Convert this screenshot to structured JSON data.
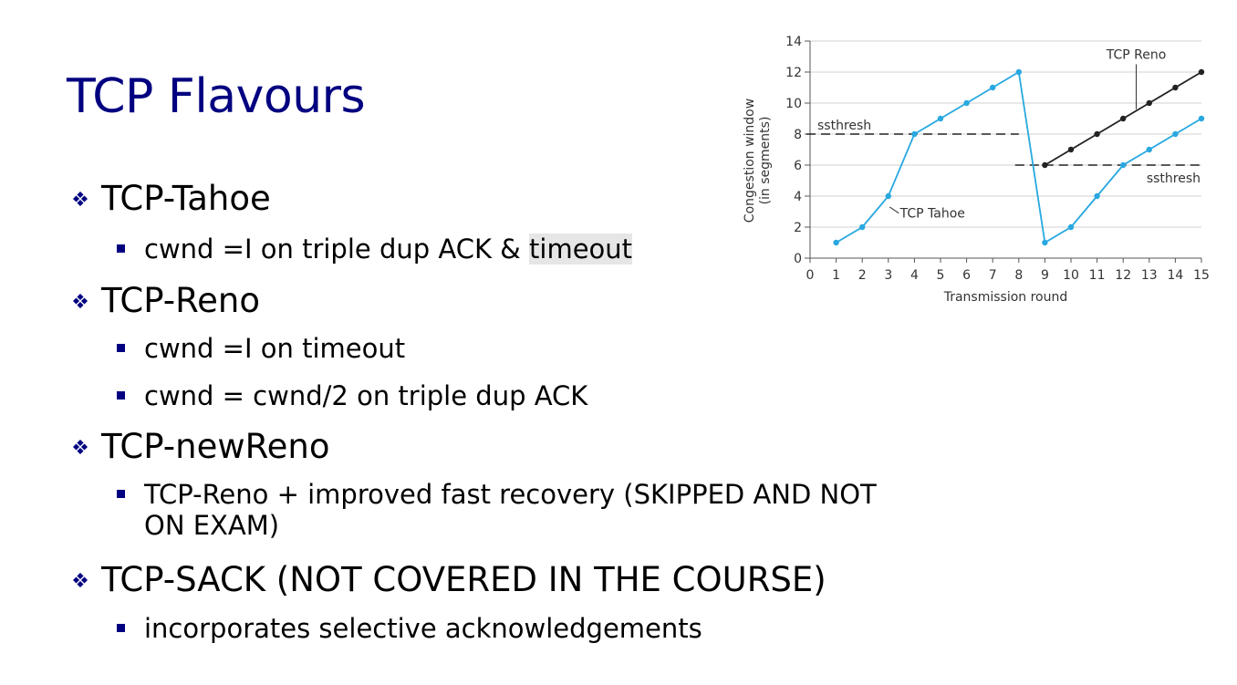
{
  "slide": {
    "title": "TCP Flavours",
    "items": [
      {
        "label": "TCP-Tahoe",
        "subitems": [
          {
            "pre": "cwnd =I on triple dup ACK & ",
            "highlight": "timeout"
          }
        ]
      },
      {
        "label": "TCP-Reno",
        "subitems": [
          {
            "text": "cwnd =I on timeout"
          },
          {
            "text": "cwnd = cwnd/2 on triple dup ACK"
          }
        ]
      },
      {
        "label": "TCP-newReno",
        "subitems": [
          {
            "line1": "TCP-Reno + improved fast recovery (SKIPPED AND NOT",
            "line2": "ON EXAM)"
          }
        ]
      },
      {
        "label": "TCP-SACK (NOT COVERED IN THE COURSE)",
        "subitems": [
          {
            "text": "incorporates selective acknowledgements"
          }
        ]
      }
    ]
  },
  "colors": {
    "title": "#000080",
    "bullet": "#000080",
    "tahoe": "#29a8e0",
    "reno": "#222222",
    "highlight": "#e6e6e6"
  },
  "chart_data": {
    "type": "line",
    "xlabel": "Transmission round",
    "ylabel_line1": "Congestion window",
    "ylabel_line2": "(in segments)",
    "xlim": [
      0,
      15
    ],
    "ylim": [
      0,
      14
    ],
    "x_ticks": [
      0,
      1,
      2,
      3,
      4,
      5,
      6,
      7,
      8,
      9,
      10,
      11,
      12,
      13,
      14,
      15
    ],
    "y_ticks": [
      0,
      2,
      4,
      6,
      8,
      10,
      12,
      14
    ],
    "series": [
      {
        "name": "TCP Tahoe",
        "x": [
          1,
          2,
          3,
          4,
          5,
          6,
          7,
          8,
          9,
          10,
          11,
          12,
          13,
          14,
          15
        ],
        "y": [
          1,
          2,
          4,
          8,
          9,
          10,
          11,
          12,
          1,
          2,
          4,
          6,
          7,
          8,
          9
        ]
      },
      {
        "name": "TCP Reno",
        "x": [
          9,
          10,
          11,
          12,
          13,
          14,
          15
        ],
        "y": [
          6,
          7,
          8,
          9,
          10,
          11,
          12
        ]
      }
    ],
    "ssthresh_lines": [
      {
        "label": "ssthresh",
        "y": 8,
        "x_from": 0,
        "x_to": 8
      },
      {
        "label": "ssthresh",
        "y": 6,
        "x_from": 8,
        "x_to": 15
      }
    ]
  }
}
